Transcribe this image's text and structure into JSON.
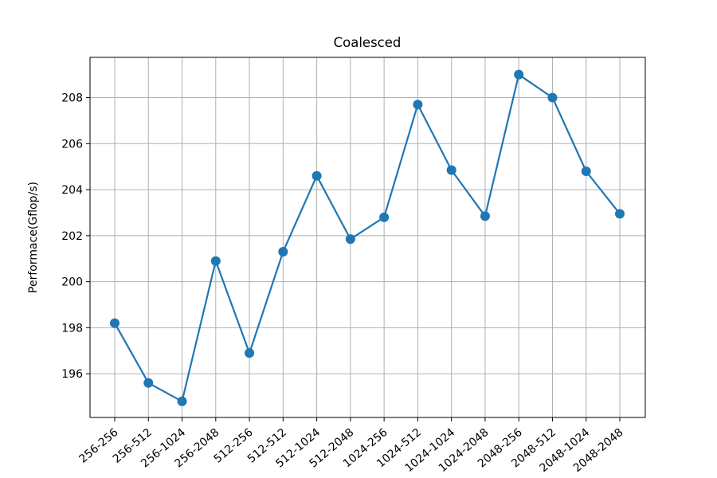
{
  "chart_data": {
    "type": "line",
    "title": "Coalesced",
    "xlabel": "",
    "ylabel": "Performace(Gflop/s)",
    "categories": [
      "256-256",
      "256-512",
      "256-1024",
      "256-2048",
      "512-256",
      "512-512",
      "512-1024",
      "512-2048",
      "1024-256",
      "1024-512",
      "1024-1024",
      "1024-2048",
      "2048-256",
      "2048-512",
      "2048-1024",
      "2048-2048"
    ],
    "series": [
      {
        "values": [
          198.2,
          195.6,
          194.8,
          200.9,
          196.9,
          201.3,
          204.6,
          201.85,
          202.8,
          207.7,
          204.85,
          202.85,
          209.0,
          208.0,
          204.8,
          202.95
        ]
      }
    ],
    "ylim": [
      194.1,
      209.75
    ],
    "yticks": [
      196,
      198,
      200,
      202,
      204,
      206,
      208
    ],
    "grid": true,
    "legend": "none",
    "color": "#1f77b4"
  }
}
